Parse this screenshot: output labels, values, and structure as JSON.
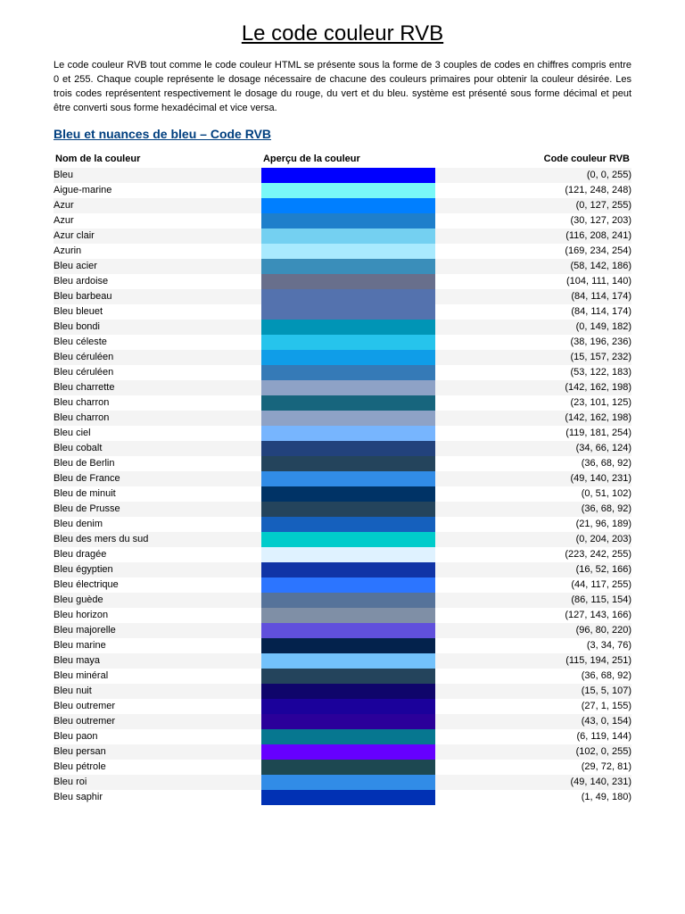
{
  "page_title": "Le code couleur RVB",
  "intro": "Le code couleur RVB tout comme le code couleur HTML se présente sous la forme de 3 couples de codes en chiffres compris entre 0 et 255. Chaque couple représente le dosage nécessaire de chacune des couleurs primaires pour obtenir la couleur désirée. Les trois codes représentent respectivement le dosage du rouge, du vert et du bleu. système est présenté sous forme décimal et peut être converti sous forme hexadécimal et vice versa.",
  "section_title": "Bleu et nuances de bleu – Code RVB",
  "columns": {
    "name": "Nom de la couleur",
    "swatch": "Aperçu de la couleur",
    "code": "Code couleur RVB"
  },
  "rows": [
    {
      "name": "Bleu",
      "rgb": [
        0,
        0,
        255
      ]
    },
    {
      "name": "Aigue-marine",
      "rgb": [
        121,
        248,
        248
      ]
    },
    {
      "name": "Azur",
      "rgb": [
        0,
        127,
        255
      ]
    },
    {
      "name": "Azur",
      "rgb": [
        30,
        127,
        203
      ]
    },
    {
      "name": "Azur clair",
      "rgb": [
        116,
        208,
        241
      ]
    },
    {
      "name": "Azurin",
      "rgb": [
        169,
        234,
        254
      ]
    },
    {
      "name": "Bleu acier",
      "rgb": [
        58,
        142,
        186
      ]
    },
    {
      "name": "Bleu ardoise",
      "rgb": [
        104,
        111,
        140
      ]
    },
    {
      "name": "Bleu barbeau",
      "rgb": [
        84,
        114,
        174
      ]
    },
    {
      "name": "Bleu bleuet",
      "rgb": [
        84,
        114,
        174
      ]
    },
    {
      "name": "Bleu bondi",
      "rgb": [
        0,
        149,
        182
      ]
    },
    {
      "name": "Bleu céleste",
      "rgb": [
        38,
        196,
        236
      ]
    },
    {
      "name": "Bleu céruléen",
      "rgb": [
        15,
        157,
        232
      ]
    },
    {
      "name": "Bleu céruléen",
      "rgb": [
        53,
        122,
        183
      ]
    },
    {
      "name": "Bleu charrette",
      "rgb": [
        142,
        162,
        198
      ]
    },
    {
      "name": "Bleu charron",
      "rgb": [
        23,
        101,
        125
      ]
    },
    {
      "name": "Bleu charron",
      "rgb": [
        142,
        162,
        198
      ]
    },
    {
      "name": "Bleu ciel",
      "rgb": [
        119,
        181,
        254
      ]
    },
    {
      "name": "Bleu cobalt",
      "rgb": [
        34,
        66,
        124
      ]
    },
    {
      "name": "Bleu de Berlin",
      "rgb": [
        36,
        68,
        92
      ]
    },
    {
      "name": "Bleu de France",
      "rgb": [
        49,
        140,
        231
      ]
    },
    {
      "name": "Bleu de minuit",
      "rgb": [
        0,
        51,
        102
      ]
    },
    {
      "name": "Bleu de Prusse",
      "rgb": [
        36,
        68,
        92
      ]
    },
    {
      "name": "Bleu denim",
      "rgb": [
        21,
        96,
        189
      ]
    },
    {
      "name": "Bleu des mers du sud",
      "rgb": [
        0,
        204,
        203
      ]
    },
    {
      "name": "Bleu dragée",
      "rgb": [
        223,
        242,
        255
      ]
    },
    {
      "name": "Bleu égyptien",
      "rgb": [
        16,
        52,
        166
      ]
    },
    {
      "name": "Bleu électrique",
      "rgb": [
        44,
        117,
        255
      ]
    },
    {
      "name": "Bleu guède",
      "rgb": [
        86,
        115,
        154
      ]
    },
    {
      "name": "Bleu horizon",
      "rgb": [
        127,
        143,
        166
      ]
    },
    {
      "name": "Bleu majorelle",
      "rgb": [
        96,
        80,
        220
      ]
    },
    {
      "name": "Bleu marine",
      "rgb": [
        3,
        34,
        76
      ]
    },
    {
      "name": "Bleu maya",
      "rgb": [
        115,
        194,
        251
      ]
    },
    {
      "name": "Bleu minéral",
      "rgb": [
        36,
        68,
        92
      ]
    },
    {
      "name": "Bleu nuit",
      "rgb": [
        15,
        5,
        107
      ]
    },
    {
      "name": "Bleu outremer",
      "rgb": [
        27,
        1,
        155
      ]
    },
    {
      "name": "Bleu outremer",
      "rgb": [
        43,
        0,
        154
      ]
    },
    {
      "name": "Bleu paon",
      "rgb": [
        6,
        119,
        144
      ]
    },
    {
      "name": "Bleu persan",
      "rgb": [
        102,
        0,
        255
      ]
    },
    {
      "name": "Bleu pétrole",
      "rgb": [
        29,
        72,
        81
      ]
    },
    {
      "name": "Bleu roi",
      "rgb": [
        49,
        140,
        231
      ]
    },
    {
      "name": "Bleu saphir",
      "rgb": [
        1,
        49,
        180
      ]
    }
  ]
}
